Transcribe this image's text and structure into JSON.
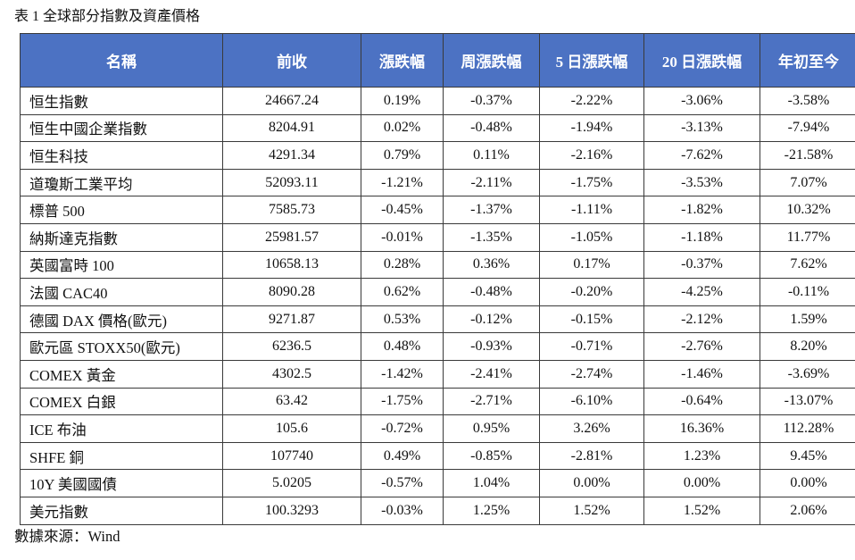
{
  "caption": "表 1 全球部分指數及資產價格",
  "table": {
    "headers": [
      "名稱",
      "前收",
      "漲跌幅",
      "周漲跌幅",
      "5 日漲跌幅",
      "20 日漲跌幅",
      "年初至今"
    ],
    "rows": [
      [
        "恒生指數",
        "24667.24",
        "0.19%",
        "-0.37%",
        "-2.22%",
        "-3.06%",
        "-3.58%"
      ],
      [
        "恒生中國企業指數",
        "8204.91",
        "0.02%",
        "-0.48%",
        "-1.94%",
        "-3.13%",
        "-7.94%"
      ],
      [
        "恒生科技",
        "4291.34",
        "0.79%",
        "0.11%",
        "-2.16%",
        "-7.62%",
        "-21.58%"
      ],
      [
        "道瓊斯工業平均",
        "52093.11",
        "-1.21%",
        "-2.11%",
        "-1.75%",
        "-3.53%",
        "7.07%"
      ],
      [
        "標普 500",
        "7585.73",
        "-0.45%",
        "-1.37%",
        "-1.11%",
        "-1.82%",
        "10.32%"
      ],
      [
        "納斯達克指數",
        "25981.57",
        "-0.01%",
        "-1.35%",
        "-1.05%",
        "-1.18%",
        "11.77%"
      ],
      [
        "英國富時 100",
        "10658.13",
        "0.28%",
        "0.36%",
        "0.17%",
        "-0.37%",
        "7.62%"
      ],
      [
        "法國 CAC40",
        "8090.28",
        "0.62%",
        "-0.48%",
        "-0.20%",
        "-4.25%",
        "-0.11%"
      ],
      [
        "德國 DAX 價格(歐元)",
        "9271.87",
        "0.53%",
        "-0.12%",
        "-0.15%",
        "-2.12%",
        "1.59%"
      ],
      [
        "歐元區 STOXX50(歐元)",
        "6236.5",
        "0.48%",
        "-0.93%",
        "-0.71%",
        "-2.76%",
        "8.20%"
      ],
      [
        "COMEX 黃金",
        "4302.5",
        "-1.42%",
        "-2.41%",
        "-2.74%",
        "-1.46%",
        "-3.69%"
      ],
      [
        "COMEX 白銀",
        "63.42",
        "-1.75%",
        "-2.71%",
        "-6.10%",
        "-0.64%",
        "-13.07%"
      ],
      [
        "ICE 布油",
        "105.6",
        "-0.72%",
        "0.95%",
        "3.26%",
        "16.36%",
        "112.28%"
      ],
      [
        "SHFE 銅",
        "107740",
        "0.49%",
        "-0.85%",
        "-2.81%",
        "1.23%",
        "9.45%"
      ],
      [
        "10Y 美國國債",
        "5.0205",
        "-0.57%",
        "1.04%",
        "0.00%",
        "0.00%",
        "0.00%"
      ],
      [
        "美元指數",
        "100.3293",
        "-0.03%",
        "1.25%",
        "1.52%",
        "1.52%",
        "2.06%"
      ]
    ]
  },
  "source": "數據來源：Wind",
  "colors": {
    "header_bg": "#4c72c3",
    "header_text": "#ffffff",
    "border": "#3a3a3a"
  }
}
